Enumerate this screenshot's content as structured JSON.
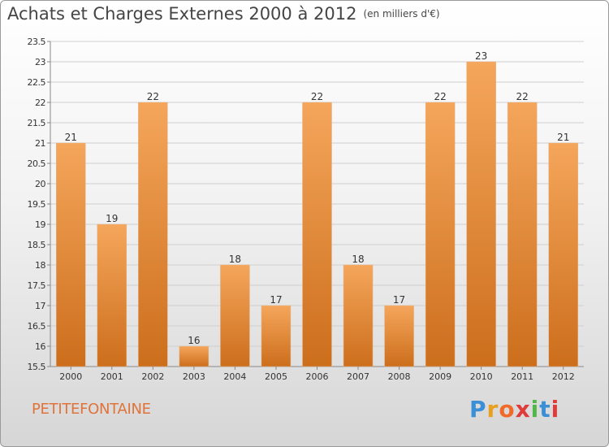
{
  "header": {
    "title": "Achats et Charges Externes 2000 à 2012",
    "unit": "(en milliers d'€)"
  },
  "footer": {
    "commune": "PETITEFONTAINE",
    "brand": "Proxiti",
    "brand_colors": [
      "#3a8fd6",
      "#e8a020",
      "#f06a2a",
      "#e03a3a",
      "#50b848",
      "#3a8fd6",
      "#e03a3a"
    ]
  },
  "colors": {
    "bar_light": "#f5a65b",
    "bar_dark": "#cc6e1c",
    "grid": "#cfcfcf",
    "axis": "#888888",
    "text": "#333333",
    "commune": "#e0733a"
  },
  "chart_data": {
    "type": "bar",
    "categories": [
      "2000",
      "2001",
      "2002",
      "2003",
      "2004",
      "2005",
      "2006",
      "2007",
      "2008",
      "2009",
      "2010",
      "2011",
      "2012"
    ],
    "values": [
      21,
      19,
      22,
      16,
      18,
      17,
      22,
      18,
      17,
      22,
      23,
      22,
      21
    ],
    "data_labels": [
      "21",
      "19",
      "22",
      "16",
      "18",
      "17",
      "22",
      "18",
      "17",
      "22",
      "23",
      "22",
      "21"
    ],
    "ylim": [
      15.5,
      23.5
    ],
    "yticks": [
      15.5,
      16,
      16.5,
      17,
      17.5,
      18,
      18.5,
      19,
      19.5,
      20,
      20.5,
      21,
      21.5,
      22,
      22.5,
      23,
      23.5
    ],
    "ytick_labels": [
      "15.5",
      "16",
      "16.5",
      "17",
      "17.5",
      "18",
      "18.5",
      "19",
      "19.5",
      "20",
      "20.5",
      "21",
      "21.5",
      "22",
      "22.5",
      "23",
      "23.5"
    ],
    "grid": true,
    "xlabel": "",
    "ylabel": ""
  }
}
